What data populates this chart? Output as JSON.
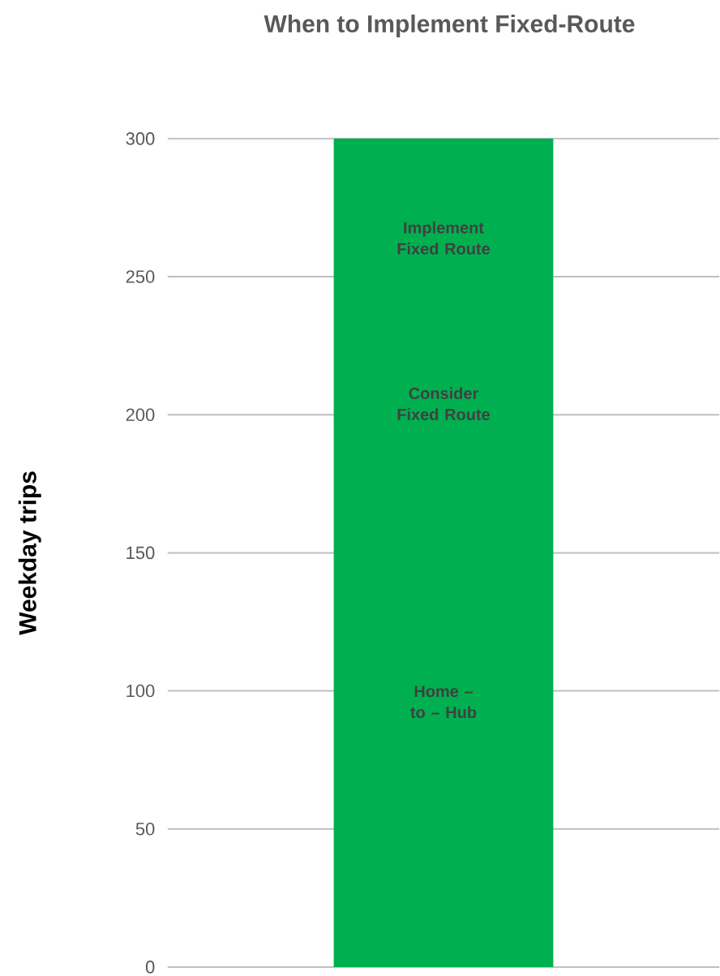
{
  "chart_data": {
    "type": "bar",
    "title": "When to Implement Fixed-Route",
    "ylabel": "Weekday trips",
    "categories": [
      null
    ],
    "values": [
      300
    ],
    "color": "#00b050",
    "ylim": [
      0,
      300
    ],
    "yticks": [
      0,
      50,
      100,
      150,
      200,
      250,
      300
    ],
    "grid": "y",
    "tick_labels": "y",
    "annotations": [
      "Implement Fixed Route",
      "Consider Fixed Route",
      "Home – to – Hub"
    ]
  }
}
